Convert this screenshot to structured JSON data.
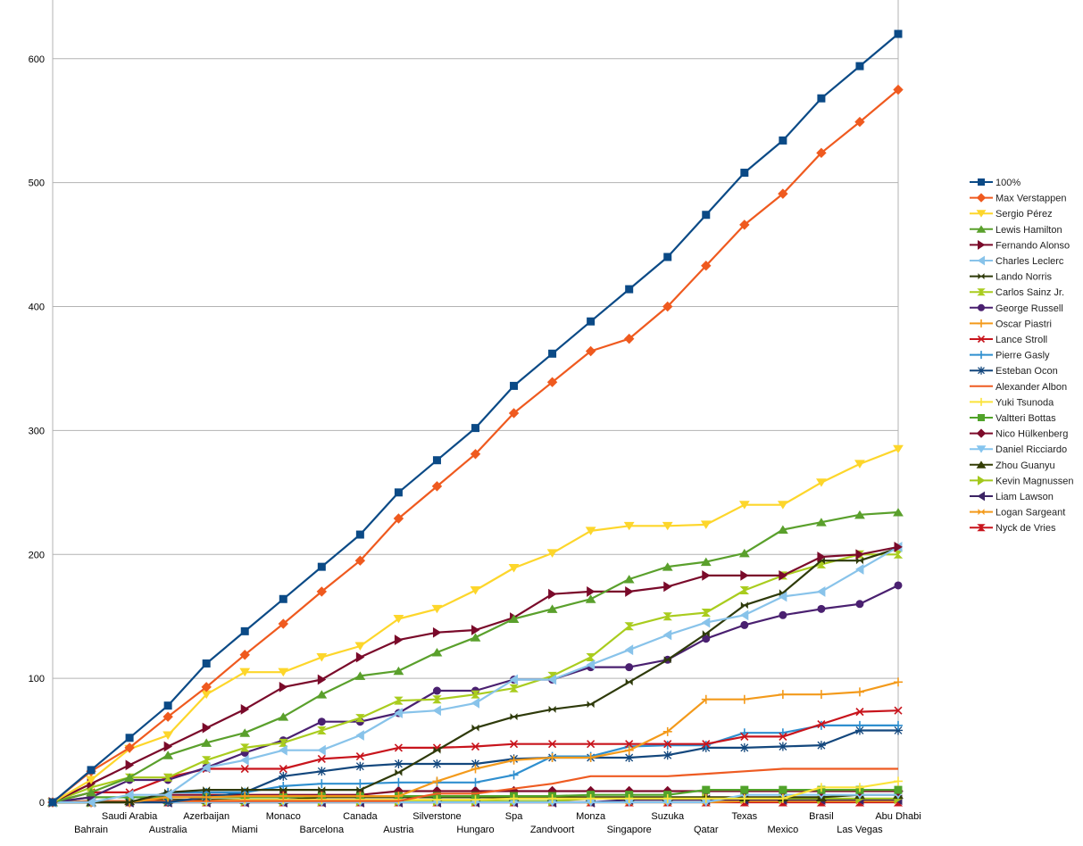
{
  "chart_data": {
    "type": "line",
    "title": "",
    "xlabel": "",
    "ylabel": "",
    "ylim": [
      0,
      620
    ],
    "yticks": [
      0,
      100,
      200,
      300,
      400,
      500,
      600
    ],
    "grid": true,
    "legend": "right",
    "categories": [
      "",
      "Bahrain",
      "Saudi Arabia",
      "Australia",
      "Azerbaijan",
      "Miami",
      "Monaco",
      "Barcelona",
      "Canada",
      "Austria",
      "Silverstone",
      "Hungaro",
      "Spa",
      "Zandvoort",
      "Monza",
      "Singapore",
      "Suzuka",
      "Qatar",
      "Texas",
      "Mexico",
      "Brasil",
      "Las Vegas",
      "Abu Dhabi"
    ],
    "series": [
      {
        "name": "100%",
        "color": "#0b4a86",
        "marker": "square",
        "values": [
          0,
          26,
          52,
          78,
          112,
          138,
          164,
          190,
          216,
          250,
          276,
          302,
          336,
          362,
          388,
          414,
          440,
          474,
          508,
          534,
          568,
          594,
          620
        ]
      },
      {
        "name": "Max Verstappen",
        "color": "#ef5a1f",
        "marker": "diamond",
        "values": [
          0,
          25,
          44,
          69,
          93,
          119,
          144,
          170,
          195,
          229,
          255,
          281,
          314,
          339,
          364,
          374,
          400,
          433,
          466,
          491,
          524,
          549,
          575
        ]
      },
      {
        "name": "Sergio Pérez",
        "color": "#fdd62b",
        "marker": "tri-down",
        "values": [
          0,
          18,
          43,
          54,
          87,
          105,
          105,
          117,
          126,
          148,
          156,
          171,
          189,
          201,
          219,
          223,
          223,
          224,
          240,
          240,
          258,
          273,
          285
        ]
      },
      {
        "name": "Lewis Hamilton",
        "color": "#5aa02c",
        "marker": "tri-up",
        "values": [
          0,
          8,
          20,
          38,
          48,
          56,
          69,
          87,
          102,
          106,
          121,
          133,
          148,
          156,
          164,
          180,
          190,
          194,
          201,
          220,
          226,
          232,
          234
        ]
      },
      {
        "name": "Fernando Alonso",
        "color": "#7a0a2a",
        "marker": "tri-right",
        "values": [
          0,
          15,
          30,
          45,
          60,
          75,
          93,
          99,
          117,
          131,
          137,
          139,
          149,
          168,
          170,
          170,
          174,
          183,
          183,
          183,
          198,
          200,
          206
        ]
      },
      {
        "name": "Charles Leclerc",
        "color": "#88c3ea",
        "marker": "tri-left",
        "values": [
          0,
          0,
          6,
          6,
          28,
          34,
          42,
          42,
          54,
          72,
          74,
          80,
          99,
          99,
          111,
          123,
          135,
          145,
          151,
          166,
          170,
          188,
          206
        ]
      },
      {
        "name": "Lando Norris",
        "color": "#2e3a0a",
        "marker": "bowtie",
        "values": [
          0,
          0,
          0,
          8,
          10,
          10,
          10,
          10,
          10,
          24,
          42,
          60,
          69,
          75,
          79,
          97,
          115,
          136,
          159,
          169,
          195,
          195,
          205
        ]
      },
      {
        "name": "Carlos Sainz Jr.",
        "color": "#a9cc1e",
        "marker": "hourglass",
        "values": [
          0,
          12,
          20,
          20,
          34,
          44,
          48,
          58,
          68,
          82,
          83,
          87,
          92,
          102,
          117,
          142,
          150,
          153,
          171,
          183,
          192,
          200,
          200
        ]
      },
      {
        "name": "George Russell",
        "color": "#4a2070",
        "marker": "circle",
        "values": [
          0,
          4,
          18,
          18,
          28,
          40,
          50,
          65,
          65,
          72,
          90,
          90,
          99,
          99,
          109,
          109,
          115,
          132,
          143,
          151,
          156,
          160,
          175
        ]
      },
      {
        "name": "Oscar Piastri",
        "color": "#f39a1b",
        "marker": "plus",
        "values": [
          0,
          0,
          0,
          4,
          4,
          5,
          5,
          5,
          5,
          5,
          17,
          27,
          34,
          36,
          36,
          42,
          57,
          83,
          83,
          87,
          87,
          89,
          97
        ]
      },
      {
        "name": "Lance Stroll",
        "color": "#c8141c",
        "marker": "x",
        "values": [
          0,
          8,
          8,
          20,
          27,
          27,
          27,
          35,
          37,
          44,
          44,
          45,
          47,
          47,
          47,
          47,
          47,
          47,
          53,
          53,
          63,
          73,
          74
        ]
      },
      {
        "name": "Pierre Gasly",
        "color": "#2f8fcf",
        "marker": "plus",
        "values": [
          0,
          0,
          0,
          8,
          8,
          8,
          13,
          15,
          15,
          16,
          16,
          16,
          22,
          37,
          37,
          45,
          46,
          46,
          56,
          56,
          62,
          62,
          62
        ]
      },
      {
        "name": "Esteban Ocon",
        "color": "#13477d",
        "marker": "star",
        "values": [
          0,
          0,
          0,
          0,
          4,
          8,
          21,
          25,
          29,
          31,
          31,
          31,
          35,
          36,
          36,
          36,
          38,
          44,
          44,
          45,
          46,
          58,
          58
        ]
      },
      {
        "name": "Alexander Albon",
        "color": "#ee5b22",
        "marker": "none",
        "values": [
          0,
          1,
          1,
          1,
          1,
          1,
          1,
          1,
          1,
          1,
          7,
          7,
          11,
          15,
          21,
          21,
          21,
          23,
          25,
          27,
          27,
          27,
          27
        ]
      },
      {
        "name": "Yuki Tsunoda",
        "color": "#fbe33a",
        "marker": "plus",
        "values": [
          0,
          0,
          0,
          1,
          1,
          2,
          2,
          2,
          2,
          2,
          2,
          2,
          3,
          3,
          3,
          3,
          3,
          3,
          3,
          3,
          12,
          12,
          17
        ]
      },
      {
        "name": "Valtteri Bottas",
        "color": "#51a32a",
        "marker": "square",
        "values": [
          0,
          4,
          4,
          4,
          4,
          4,
          4,
          5,
          5,
          5,
          5,
          5,
          5,
          5,
          6,
          6,
          6,
          10,
          10,
          10,
          10,
          10,
          10
        ]
      },
      {
        "name": "Nico Hülkenberg",
        "color": "#7d0b2a",
        "marker": "diamond",
        "values": [
          0,
          0,
          0,
          6,
          6,
          6,
          6,
          6,
          6,
          9,
          9,
          9,
          9,
          9,
          9,
          9,
          9,
          9,
          9,
          9,
          9,
          9,
          9
        ]
      },
      {
        "name": "Daniel Ricciardo",
        "color": "#86c5ef",
        "marker": "tri-down",
        "values": [
          0,
          0,
          0,
          0,
          0,
          0,
          0,
          0,
          0,
          0,
          0,
          0,
          0,
          0,
          0,
          0,
          0,
          0,
          6,
          6,
          6,
          6,
          6
        ]
      },
      {
        "name": "Zhou Guanyu",
        "color": "#333d05",
        "marker": "tri-up",
        "values": [
          0,
          0,
          1,
          2,
          2,
          2,
          2,
          4,
          4,
          4,
          4,
          4,
          4,
          4,
          4,
          4,
          4,
          4,
          4,
          4,
          4,
          6,
          6
        ]
      },
      {
        "name": "Kevin Magnussen",
        "color": "#a3c81c",
        "marker": "tri-right",
        "values": [
          0,
          0,
          1,
          1,
          1,
          1,
          1,
          1,
          1,
          1,
          1,
          1,
          1,
          1,
          3,
          3,
          3,
          3,
          3,
          3,
          3,
          3,
          3
        ]
      },
      {
        "name": "Liam Lawson",
        "color": "#3c2464",
        "marker": "tri-left",
        "values": [
          0,
          0,
          0,
          0,
          0,
          0,
          0,
          0,
          0,
          0,
          0,
          0,
          0,
          0,
          0,
          2,
          2,
          2,
          2,
          2,
          2,
          2,
          2
        ]
      },
      {
        "name": "Logan Sargeant",
        "color": "#f39a1b",
        "marker": "bowtie",
        "values": [
          0,
          0,
          0,
          0,
          0,
          0,
          0,
          0,
          0,
          0,
          0,
          0,
          0,
          0,
          0,
          0,
          0,
          0,
          1,
          1,
          1,
          1,
          1
        ]
      },
      {
        "name": "Nyck de Vries",
        "color": "#c8141c",
        "marker": "hourglass",
        "values": [
          0,
          0,
          0,
          0,
          0,
          0,
          0,
          0,
          0,
          0,
          0,
          0,
          0,
          0,
          0,
          0,
          0,
          0,
          0,
          0,
          0,
          0,
          0
        ]
      }
    ]
  }
}
